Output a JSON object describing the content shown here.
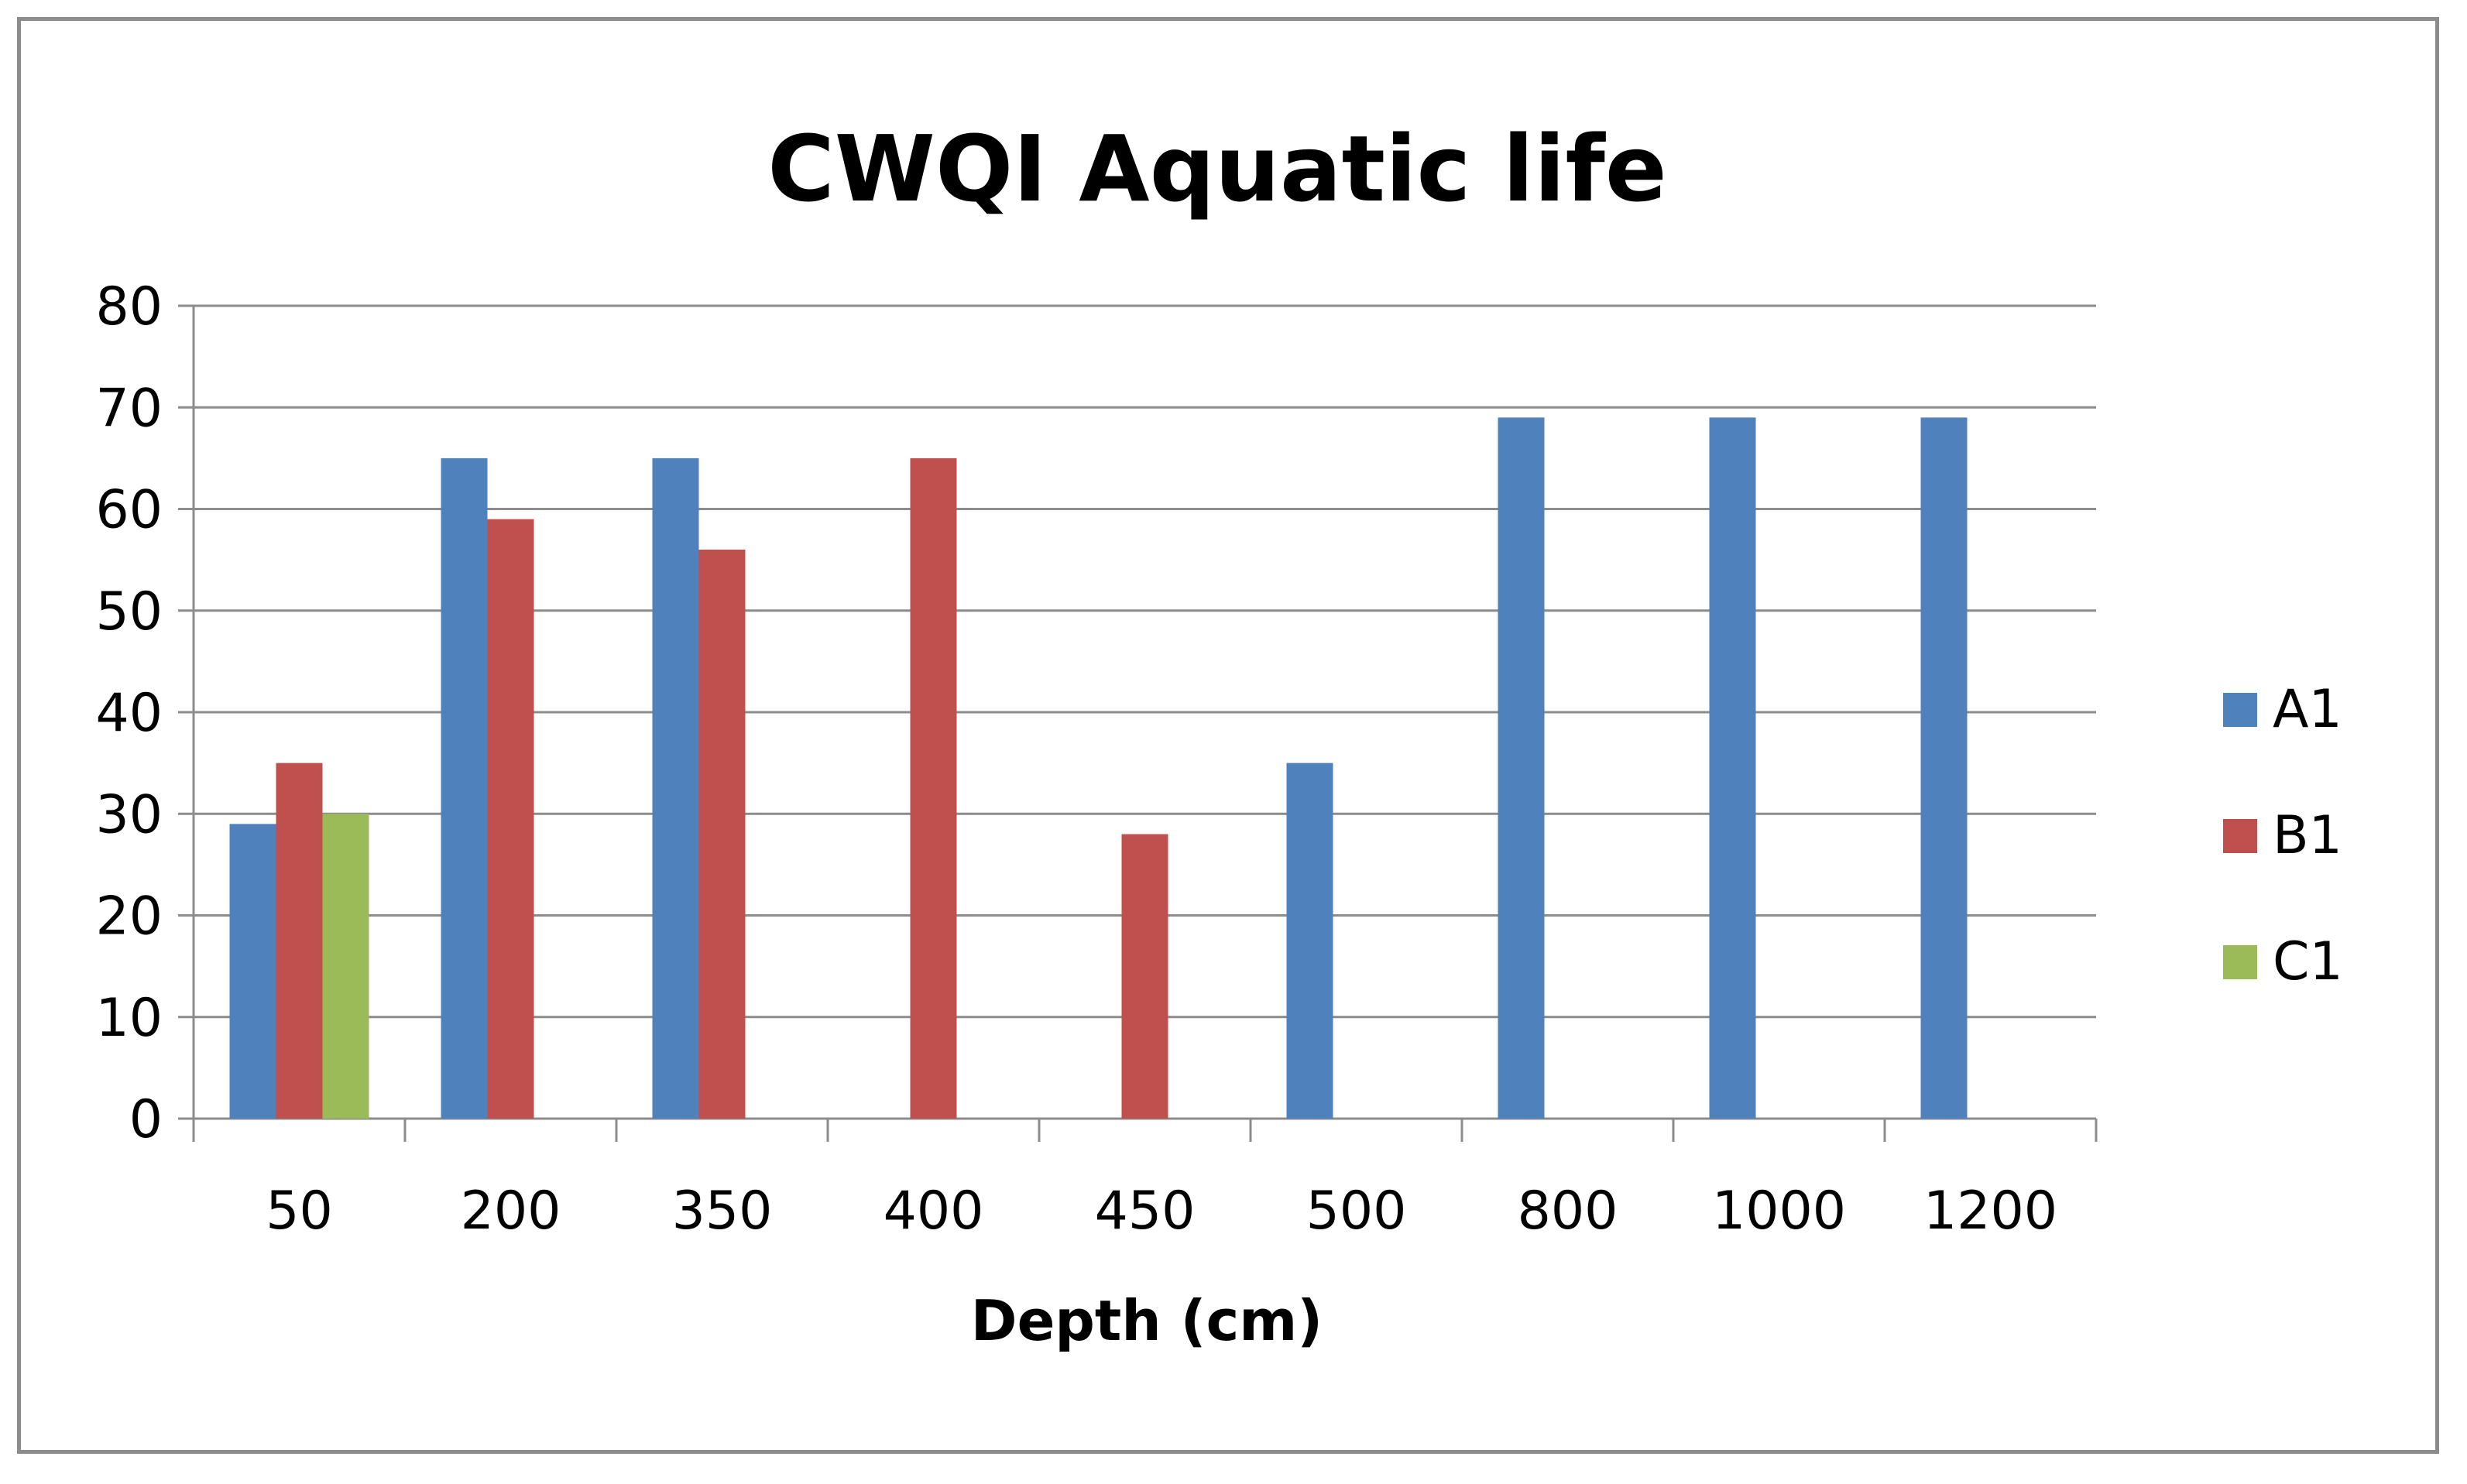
{
  "chart_data": {
    "type": "bar",
    "title": "CWQI Aquatic life",
    "xlabel": "Depth (cm)",
    "ylabel": "",
    "categories": [
      "50",
      "200",
      "350",
      "400",
      "450",
      "500",
      "800",
      "1000",
      "1200"
    ],
    "series": [
      {
        "name": "A1",
        "color": "#4F81BD",
        "values": [
          29,
          65,
          65,
          null,
          null,
          35,
          69,
          69,
          69
        ]
      },
      {
        "name": "B1",
        "color": "#C0504D",
        "values": [
          35,
          59,
          56,
          65,
          28,
          null,
          null,
          null,
          null
        ]
      },
      {
        "name": "C1",
        "color": "#9BBB59",
        "values": [
          30,
          null,
          null,
          null,
          null,
          null,
          null,
          null,
          null
        ]
      }
    ],
    "ylim": [
      0,
      80
    ],
    "yticks": [
      0,
      10,
      20,
      30,
      40,
      50,
      60,
      70,
      80
    ],
    "grid": true,
    "legend": "right"
  }
}
